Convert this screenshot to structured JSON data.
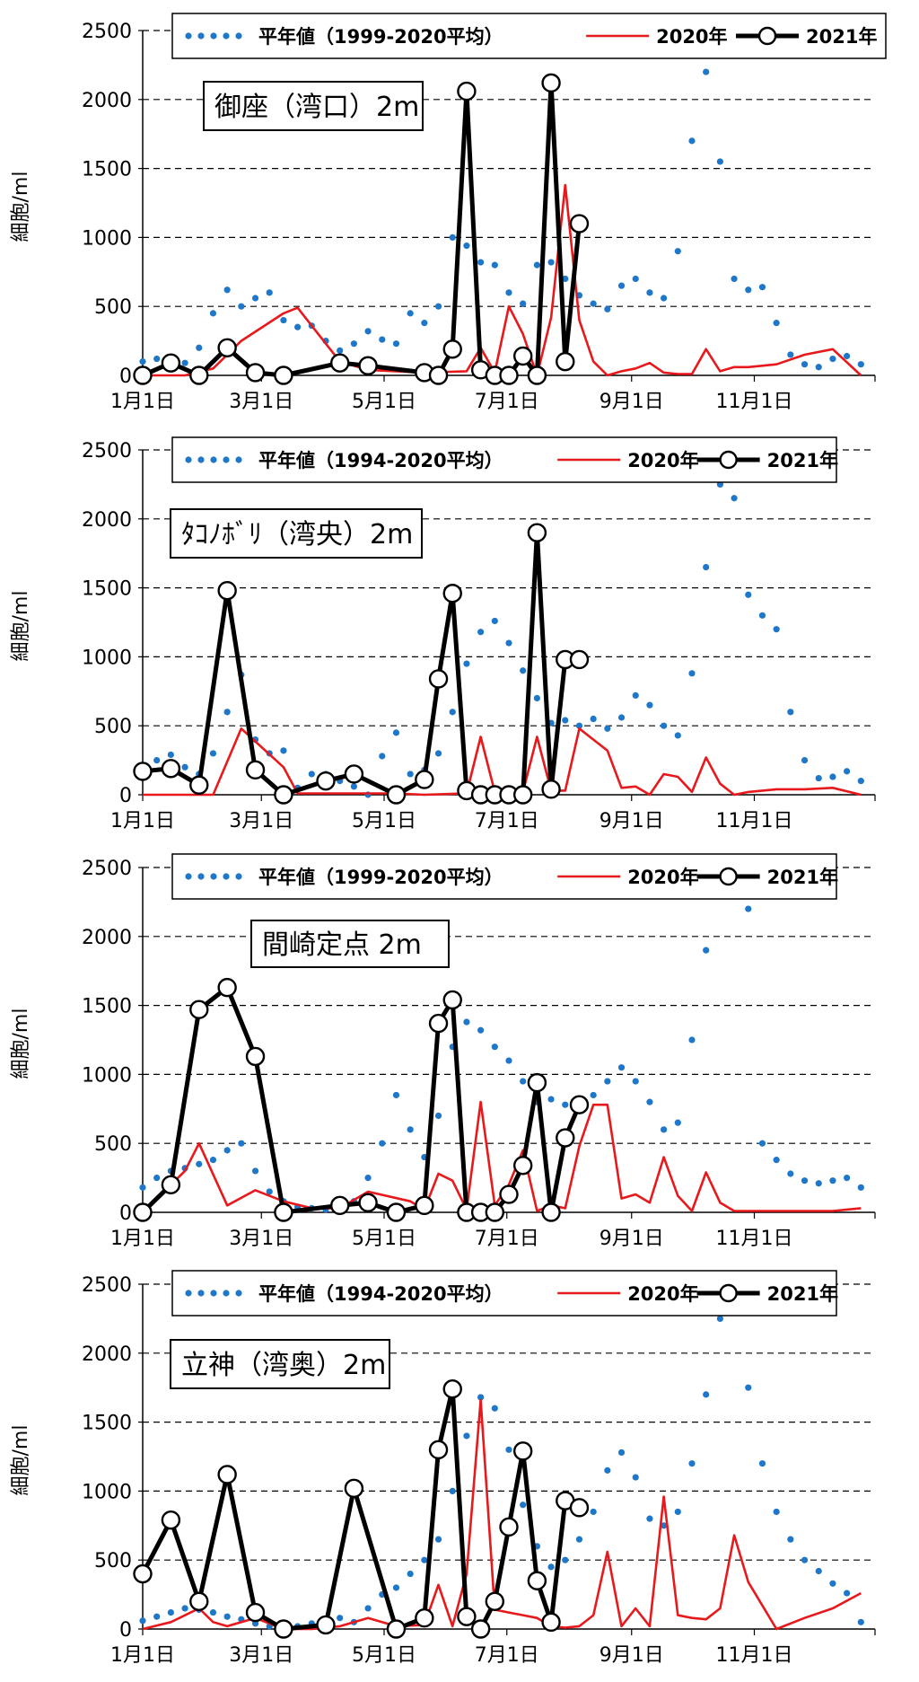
{
  "chart_data": [
    {
      "type": "line",
      "ylabel": "細胞/ml",
      "ylim": [
        0,
        2500
      ],
      "yticks": [
        0,
        500,
        1000,
        1500,
        2000,
        2500
      ],
      "xticks": [
        "1月1日",
        "3月1日",
        "5月1日",
        "7月1日",
        "9月1日",
        "11月1日"
      ],
      "station_label": "御座（湾口）2m",
      "legend": [
        "平年値（1999-2020平均）",
        "2020年",
        "2021年"
      ],
      "grid": "horizontal dashed",
      "series": [
        {
          "name": "平年値（1999-2020平均）",
          "style": "dotted",
          "color": "#1f77c9",
          "x": [
            1,
            8,
            15,
            22,
            29,
            36,
            43,
            50,
            57,
            64,
            71,
            78,
            85,
            92,
            99,
            106,
            113,
            120,
            127,
            134,
            141,
            148,
            155,
            162,
            169,
            176,
            183,
            190,
            197,
            204,
            211,
            218,
            225,
            232,
            239,
            246,
            253,
            260,
            267,
            274,
            281,
            288,
            295,
            302,
            309,
            316,
            323,
            330,
            337,
            344,
            351,
            358
          ],
          "y": [
            100,
            120,
            110,
            90,
            200,
            450,
            620,
            500,
            560,
            600,
            400,
            350,
            360,
            250,
            180,
            230,
            320,
            260,
            230,
            450,
            380,
            500,
            1000,
            940,
            820,
            800,
            600,
            520,
            800,
            820,
            700,
            580,
            520,
            480,
            650,
            700,
            600,
            560,
            900,
            1700,
            2200,
            1550,
            700,
            620,
            640,
            380,
            150,
            80,
            60,
            120,
            140,
            80
          ]
        },
        {
          "name": "2020年",
          "style": "solid",
          "color": "#e8191c",
          "x": [
            1,
            22,
            36,
            50,
            71,
            78,
            99,
            113,
            127,
            141,
            162,
            169,
            176,
            183,
            190,
            197,
            204,
            211,
            218,
            225,
            232,
            239,
            246,
            253,
            260,
            267,
            274,
            281,
            288,
            295,
            302,
            316,
            330,
            344,
            358
          ],
          "y": [
            0,
            0,
            50,
            250,
            450,
            490,
            100,
            40,
            30,
            20,
            30,
            200,
            20,
            500,
            300,
            0,
            420,
            1380,
            400,
            100,
            0,
            30,
            50,
            90,
            20,
            10,
            10,
            190,
            30,
            60,
            60,
            80,
            150,
            190,
            0
          ]
        },
        {
          "name": "2021年",
          "style": "solid-marker",
          "color": "#000000",
          "x": [
            1,
            15,
            29,
            43,
            57,
            71,
            99,
            113,
            141,
            148,
            155,
            162,
            169,
            176,
            183,
            190,
            197,
            204,
            211,
            218
          ],
          "y": [
            0,
            90,
            0,
            200,
            20,
            0,
            90,
            70,
            20,
            0,
            190,
            2060,
            40,
            0,
            0,
            140,
            0,
            2120,
            100,
            1100
          ]
        }
      ]
    },
    {
      "type": "line",
      "ylabel": "細胞/ml",
      "ylim": [
        0,
        2500
      ],
      "yticks": [
        0,
        500,
        1000,
        1500,
        2000,
        2500
      ],
      "xticks": [
        "1月1日",
        "3月1日",
        "5月1日",
        "7月1日",
        "9月1日",
        "11月1日"
      ],
      "station_label": "ﾀｺﾉﾎﾞﾘ（湾央）2m",
      "legend": [
        "平年値（1994-2020平均）",
        "2020年",
        "2021年"
      ],
      "grid": "horizontal dashed",
      "series": [
        {
          "name": "平年値（1994-2020平均）",
          "style": "dotted",
          "color": "#1f77c9",
          "x": [
            1,
            8,
            15,
            22,
            29,
            36,
            43,
            50,
            57,
            64,
            71,
            78,
            85,
            92,
            99,
            106,
            113,
            120,
            127,
            134,
            141,
            148,
            155,
            162,
            169,
            176,
            183,
            190,
            197,
            204,
            211,
            218,
            225,
            232,
            239,
            246,
            253,
            260,
            267,
            274,
            281,
            288,
            295,
            302,
            309,
            316,
            323,
            330,
            337,
            344,
            351,
            358
          ],
          "y": [
            200,
            250,
            290,
            200,
            150,
            300,
            600,
            870,
            400,
            300,
            320,
            50,
            150,
            150,
            100,
            60,
            0,
            280,
            450,
            150,
            180,
            300,
            600,
            950,
            1180,
            1260,
            1100,
            900,
            700,
            520,
            540,
            500,
            550,
            480,
            560,
            720,
            650,
            500,
            430,
            880,
            1650,
            2250,
            2150,
            1450,
            1300,
            1200,
            600,
            250,
            120,
            130,
            170,
            100
          ]
        },
        {
          "name": "2020年",
          "style": "solid",
          "color": "#e8191c",
          "x": [
            1,
            22,
            36,
            50,
            71,
            78,
            99,
            113,
            127,
            141,
            162,
            169,
            176,
            183,
            190,
            197,
            204,
            211,
            218,
            225,
            232,
            239,
            246,
            253,
            260,
            267,
            274,
            281,
            288,
            295,
            302,
            316,
            330,
            344,
            358
          ],
          "y": [
            0,
            0,
            0,
            480,
            200,
            10,
            10,
            10,
            10,
            0,
            10,
            420,
            20,
            10,
            20,
            420,
            30,
            30,
            480,
            400,
            320,
            50,
            60,
            0,
            150,
            130,
            20,
            270,
            80,
            0,
            20,
            40,
            40,
            50,
            0
          ]
        },
        {
          "name": "2021年",
          "style": "solid-marker",
          "color": "#000000",
          "x": [
            1,
            15,
            29,
            43,
            57,
            71,
            92,
            106,
            127,
            141,
            148,
            155,
            162,
            169,
            176,
            183,
            190,
            197,
            204,
            211,
            218
          ],
          "y": [
            170,
            190,
            70,
            1480,
            180,
            0,
            100,
            150,
            0,
            110,
            840,
            1460,
            30,
            0,
            0,
            0,
            0,
            1900,
            40,
            980,
            980
          ]
        }
      ]
    },
    {
      "type": "line",
      "ylabel": "細胞/ml",
      "ylim": [
        0,
        2500
      ],
      "yticks": [
        0,
        500,
        1000,
        1500,
        2000,
        2500
      ],
      "xticks": [
        "1月1日",
        "3月1日",
        "5月1日",
        "7月1日",
        "9月1日",
        "11月1日"
      ],
      "station_label": "間崎定点 2m",
      "legend": [
        "平年値（1999-2020平均）",
        "2020年",
        "2021年"
      ],
      "grid": "horizontal dashed",
      "series": [
        {
          "name": "平年値（1999-2020平均）",
          "style": "dotted",
          "color": "#1f77c9",
          "x": [
            1,
            8,
            15,
            22,
            29,
            36,
            43,
            50,
            57,
            64,
            71,
            78,
            85,
            92,
            99,
            106,
            113,
            120,
            127,
            134,
            141,
            148,
            155,
            162,
            169,
            176,
            183,
            190,
            197,
            204,
            211,
            218,
            225,
            232,
            239,
            246,
            253,
            260,
            267,
            274,
            281,
            288,
            295,
            302,
            309,
            316,
            323,
            330,
            337,
            344,
            351,
            358
          ],
          "y": [
            180,
            250,
            300,
            320,
            350,
            380,
            450,
            500,
            300,
            150,
            80,
            40,
            30,
            20,
            40,
            80,
            250,
            500,
            850,
            600,
            400,
            700,
            1200,
            1380,
            1320,
            1200,
            1100,
            950,
            800,
            820,
            780,
            800,
            850,
            950,
            1050,
            950,
            800,
            600,
            650,
            1250,
            1900,
            2300,
            2300,
            2200,
            500,
            380,
            280,
            230,
            210,
            230,
            250,
            180
          ]
        },
        {
          "name": "2020年",
          "style": "solid",
          "color": "#e8191c",
          "x": [
            1,
            22,
            29,
            43,
            57,
            71,
            85,
            99,
            113,
            134,
            141,
            148,
            155,
            162,
            169,
            176,
            183,
            190,
            197,
            204,
            211,
            218,
            225,
            232,
            239,
            246,
            253,
            260,
            267,
            274,
            281,
            288,
            295,
            302,
            316,
            330,
            344,
            358
          ],
          "y": [
            0,
            300,
            500,
            50,
            160,
            80,
            30,
            30,
            150,
            80,
            20,
            280,
            230,
            20,
            800,
            50,
            200,
            450,
            10,
            50,
            30,
            480,
            780,
            780,
            100,
            130,
            70,
            400,
            120,
            10,
            290,
            70,
            10,
            10,
            10,
            10,
            10,
            30
          ]
        },
        {
          "name": "2021年",
          "style": "solid-marker",
          "color": "#000000",
          "x": [
            1,
            15,
            29,
            43,
            57,
            71,
            99,
            113,
            127,
            141,
            148,
            155,
            162,
            169,
            176,
            183,
            190,
            197,
            204,
            211,
            218
          ],
          "y": [
            0,
            200,
            1470,
            1630,
            1130,
            0,
            50,
            70,
            0,
            50,
            1370,
            1540,
            0,
            0,
            0,
            130,
            340,
            940,
            0,
            540,
            780
          ]
        }
      ]
    },
    {
      "type": "line",
      "ylabel": "細胞/ml",
      "ylim": [
        0,
        2500
      ],
      "yticks": [
        0,
        500,
        1000,
        1500,
        2000,
        2500
      ],
      "xticks": [
        "1月1日",
        "3月1日",
        "5月1日",
        "7月1日",
        "9月1日",
        "11月1日"
      ],
      "station_label": "立神（湾奥）2m",
      "legend": [
        "平年値（1994-2020平均）",
        "2020年",
        "2021年"
      ],
      "grid": "horizontal dashed",
      "series": [
        {
          "name": "平年値（1994-2020平均）",
          "style": "dotted",
          "color": "#1f77c9",
          "x": [
            1,
            8,
            15,
            22,
            29,
            36,
            43,
            50,
            57,
            64,
            71,
            78,
            85,
            92,
            99,
            106,
            113,
            120,
            127,
            134,
            141,
            148,
            155,
            162,
            169,
            176,
            183,
            190,
            197,
            204,
            211,
            218,
            225,
            232,
            239,
            246,
            253,
            260,
            267,
            274,
            281,
            288,
            295,
            302,
            309,
            316,
            323,
            330,
            337,
            344,
            351,
            358
          ],
          "y": [
            60,
            90,
            120,
            150,
            140,
            120,
            90,
            70,
            40,
            20,
            30,
            20,
            40,
            60,
            80,
            50,
            150,
            250,
            300,
            400,
            500,
            650,
            1000,
            1400,
            1680,
            1600,
            1300,
            900,
            600,
            450,
            500,
            650,
            850,
            1150,
            1280,
            1100,
            800,
            750,
            850,
            1200,
            1700,
            2250,
            2300,
            1750,
            1200,
            850,
            650,
            500,
            420,
            330,
            260,
            50
          ]
        },
        {
          "name": "2020年",
          "style": "solid",
          "color": "#e8191c",
          "x": [
            1,
            15,
            29,
            36,
            43,
            57,
            71,
            85,
            99,
            113,
            127,
            141,
            148,
            155,
            162,
            169,
            176,
            183,
            190,
            197,
            204,
            211,
            218,
            225,
            232,
            239,
            246,
            253,
            260,
            267,
            274,
            281,
            288,
            295,
            302,
            316,
            330,
            344,
            358
          ],
          "y": [
            0,
            50,
            150,
            50,
            20,
            80,
            0,
            0,
            20,
            80,
            20,
            30,
            320,
            20,
            400,
            1660,
            140,
            120,
            100,
            80,
            20,
            10,
            20,
            100,
            560,
            20,
            150,
            20,
            960,
            100,
            80,
            70,
            150,
            680,
            340,
            0,
            80,
            150,
            260
          ]
        },
        {
          "name": "2021年",
          "style": "solid-marker",
          "color": "#000000",
          "x": [
            1,
            15,
            29,
            43,
            57,
            71,
            92,
            106,
            127,
            141,
            148,
            155,
            162,
            169,
            176,
            183,
            190,
            197,
            204,
            211,
            218
          ],
          "y": [
            400,
            790,
            200,
            1120,
            120,
            0,
            30,
            1020,
            0,
            80,
            1300,
            1740,
            90,
            0,
            200,
            740,
            1290,
            350,
            50,
            930,
            880
          ]
        }
      ]
    }
  ]
}
